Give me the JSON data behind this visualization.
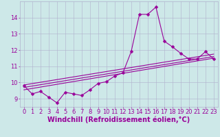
{
  "background_color": "#cde8e8",
  "line_color": "#990099",
  "marker": "D",
  "markersize": 2.5,
  "linewidth": 0.8,
  "xlabel": "Windchill (Refroidissement éolien,°C)",
  "xlim": [
    -0.5,
    23.5
  ],
  "ylim": [
    8.5,
    15.0
  ],
  "yticks": [
    9,
    10,
    11,
    12,
    13,
    14
  ],
  "xticks": [
    0,
    1,
    2,
    3,
    4,
    5,
    6,
    7,
    8,
    9,
    10,
    11,
    12,
    13,
    14,
    15,
    16,
    17,
    18,
    19,
    20,
    21,
    22,
    23
  ],
  "grid_color": "#b0b0cc",
  "series1_x": [
    0,
    1,
    2,
    3,
    4,
    5,
    6,
    7,
    8,
    9,
    10,
    11,
    12,
    13,
    14,
    15,
    16,
    17,
    18,
    19,
    20,
    21,
    22,
    23
  ],
  "series1_y": [
    9.8,
    9.3,
    9.45,
    9.1,
    8.75,
    9.4,
    9.3,
    9.2,
    9.55,
    9.95,
    10.05,
    10.4,
    10.6,
    11.9,
    14.2,
    14.2,
    14.65,
    12.55,
    12.2,
    11.8,
    11.45,
    11.45,
    11.9,
    11.45
  ],
  "line2_x0": 0,
  "line2_x1": 23,
  "line2_y0": 9.55,
  "line2_y1": 11.5,
  "line3_x0": 0,
  "line3_x1": 23,
  "line3_y0": 9.7,
  "line3_y1": 11.6,
  "line4_x0": 0,
  "line4_x1": 23,
  "line4_y0": 9.85,
  "line4_y1": 11.75,
  "xlabel_fontsize": 7,
  "tick_fontsize": 6
}
